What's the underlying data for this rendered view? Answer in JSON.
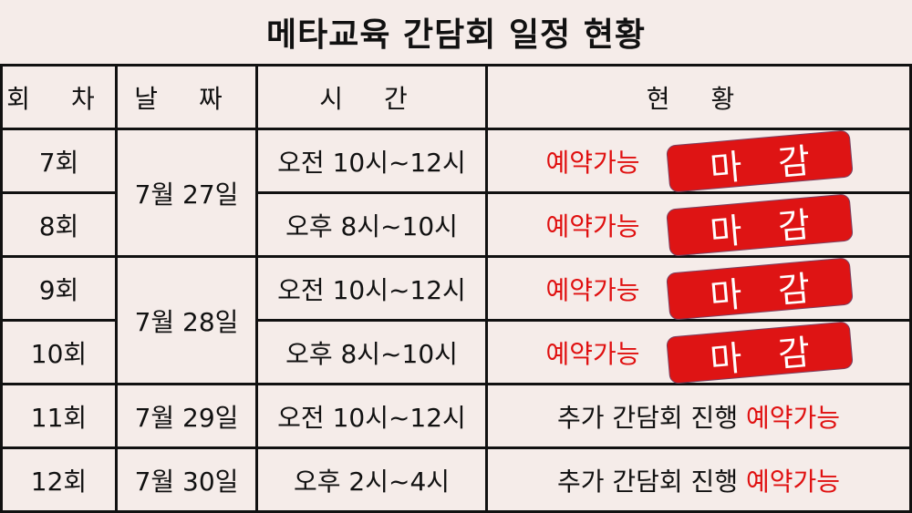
{
  "title": "메타교육 간담회 일정 현황",
  "headers": [
    "회 차",
    "날 짜",
    "시 간",
    "현 황"
  ],
  "rows": [
    {
      "round": "7회",
      "date": "7월 27일",
      "time": "오전 10시~12시",
      "status_prefix": "",
      "status": "예약가능"
    },
    {
      "round": "8회",
      "date": "",
      "time": "오후 8시~10시",
      "status_prefix": "",
      "status": "예약가능"
    },
    {
      "round": "9회",
      "date": "7월 28일",
      "time": "오전 10시~12시",
      "status_prefix": "",
      "status": "예약가능"
    },
    {
      "round": "10회",
      "date": "",
      "time": "오후 8시~10시",
      "status_prefix": "",
      "status": "예약가능"
    },
    {
      "round": "11회",
      "date": "7월 29일",
      "time": "오전 10시~12시",
      "status_prefix": "추가 간담회 진행",
      "status": "예약가능"
    },
    {
      "round": "12회",
      "date": "7월 30일",
      "time": "오후 2시~4시",
      "status_prefix": "추가 간담회 진행",
      "status": "예약가능"
    }
  ],
  "stamp": {
    "char1": "마",
    "char2": "감",
    "color": "#de1414"
  },
  "colors": {
    "background": "#f5ece9",
    "available": "#e01010"
  }
}
